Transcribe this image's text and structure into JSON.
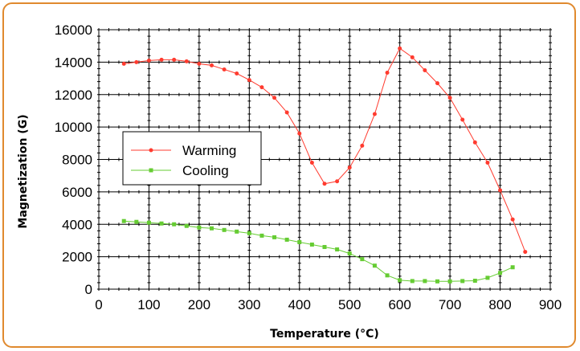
{
  "chart_data": {
    "type": "line",
    "xlabel": "Temperature (°C)",
    "ylabel": "Magnetization (G)",
    "xlim": [
      0,
      900
    ],
    "ylim": [
      0,
      16000
    ],
    "xticks": [
      0,
      100,
      200,
      300,
      400,
      500,
      600,
      700,
      800,
      900
    ],
    "yticks": [
      0,
      2000,
      4000,
      6000,
      8000,
      10000,
      12000,
      14000,
      16000
    ],
    "grid": true,
    "legend_position": "center-left",
    "series": [
      {
        "name": "Warming",
        "color": "#ff3b2f",
        "marker": "circle",
        "x": [
          50,
          75,
          100,
          125,
          150,
          175,
          200,
          225,
          250,
          275,
          300,
          325,
          350,
          375,
          400,
          425,
          450,
          475,
          500,
          525,
          550,
          575,
          600,
          625,
          650,
          675,
          700,
          725,
          750,
          775,
          800,
          825,
          850
        ],
        "y": [
          13900,
          14000,
          14100,
          14150,
          14150,
          14050,
          13900,
          13800,
          13550,
          13300,
          12900,
          12450,
          11800,
          10900,
          9600,
          7800,
          6500,
          6650,
          7500,
          8850,
          10800,
          13350,
          14850,
          14300,
          13500,
          12700,
          11800,
          10450,
          9050,
          7800,
          6100,
          4300,
          2300
        ]
      },
      {
        "name": "Cooling",
        "color": "#66cc33",
        "marker": "square",
        "x": [
          50,
          75,
          100,
          125,
          150,
          175,
          200,
          225,
          250,
          275,
          300,
          325,
          350,
          375,
          400,
          425,
          450,
          475,
          500,
          525,
          550,
          575,
          600,
          625,
          650,
          675,
          700,
          725,
          750,
          775,
          800,
          825
        ],
        "y": [
          4200,
          4150,
          4100,
          4050,
          4000,
          3900,
          3800,
          3750,
          3650,
          3550,
          3450,
          3300,
          3200,
          3050,
          2900,
          2750,
          2600,
          2450,
          2200,
          1850,
          1450,
          850,
          550,
          500,
          500,
          480,
          480,
          500,
          520,
          700,
          1000,
          1350
        ]
      }
    ]
  }
}
